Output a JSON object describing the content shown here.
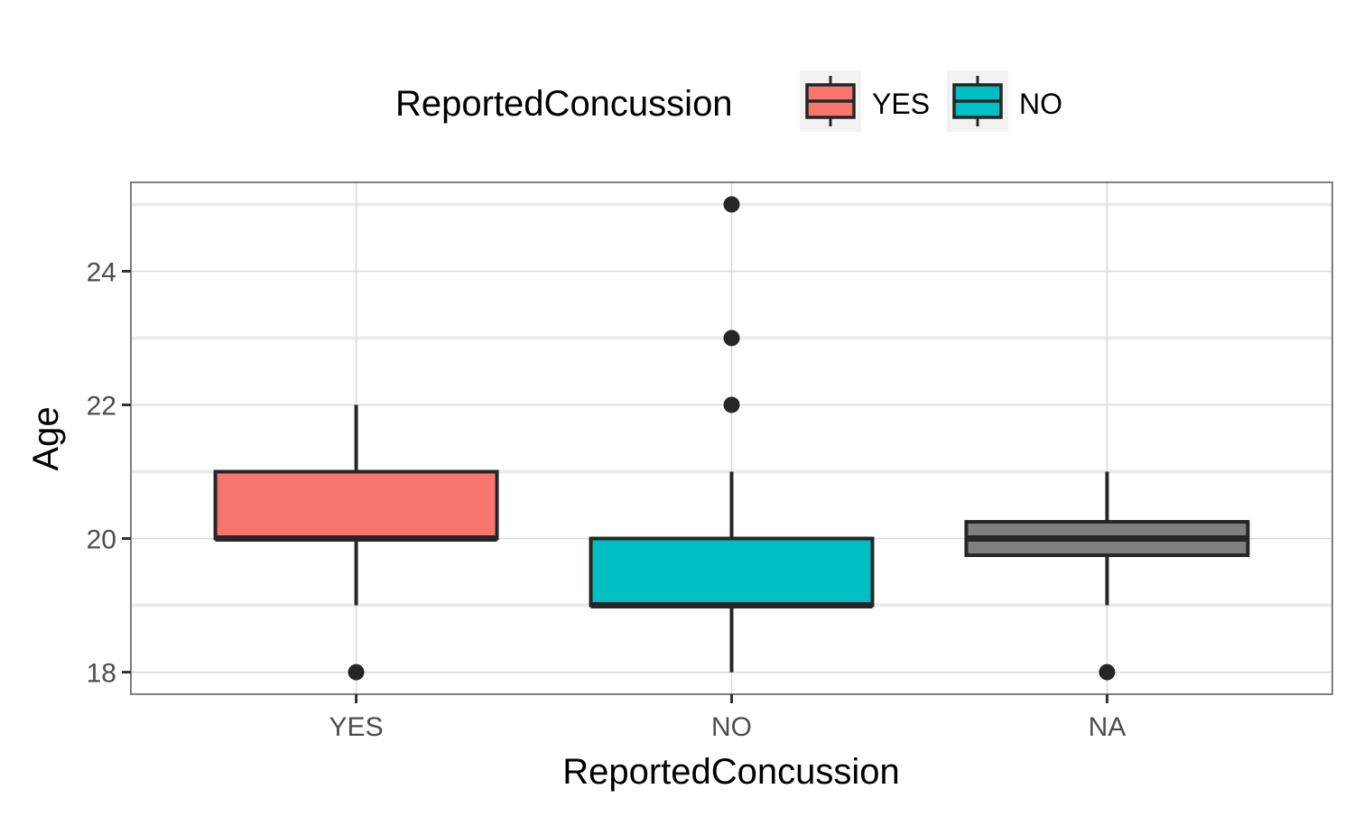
{
  "chart_data": {
    "type": "boxplot",
    "xlabel": "ReportedConcussion",
    "ylabel": "Age",
    "ylim": [
      17.67,
      25.33
    ],
    "yticks": [
      18,
      20,
      22,
      24
    ],
    "grid": true,
    "legend": {
      "title": "ReportedConcussion",
      "placement": "top",
      "items": [
        {
          "label": "YES",
          "color": "#F8766D"
        },
        {
          "label": "NO",
          "color": "#00BFC4"
        }
      ]
    },
    "categories": [
      "YES",
      "NO",
      "NA"
    ],
    "boxes": [
      {
        "category": "YES",
        "color": "#F8766D",
        "min": 19,
        "q1": 20,
        "median": 20,
        "q3": 21,
        "max": 22,
        "outliers": [
          18
        ]
      },
      {
        "category": "NO",
        "color": "#00BFC4",
        "min": 18,
        "q1": 19,
        "median": 19,
        "q3": 20,
        "max": 21,
        "outliers": [
          22,
          23,
          25
        ]
      },
      {
        "category": "NA",
        "color": "#7F7F7F",
        "min": 19,
        "q1": 19.75,
        "median": 20,
        "q3": 20.25,
        "max": 21,
        "outliers": [
          18
        ]
      }
    ]
  }
}
